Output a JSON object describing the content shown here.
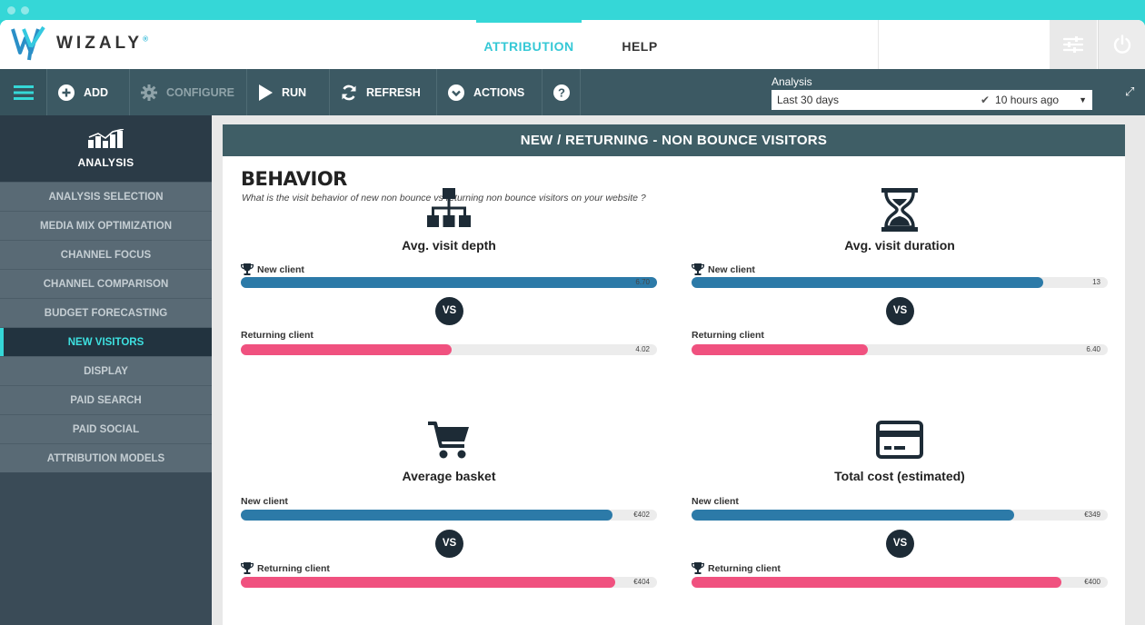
{
  "app": {
    "logo_text": "WIZALY",
    "logo_mark": "®"
  },
  "nav": {
    "attribution": "ATTRIBUTION",
    "help": "HELP"
  },
  "toolbar": {
    "add": "ADD",
    "configure": "CONFIGURE",
    "run": "RUN",
    "refresh": "REFRESH",
    "actions": "ACTIONS",
    "help_glyph": "?"
  },
  "analysis": {
    "label": "Analysis",
    "period": "Last 30 days",
    "status": "10 hours ago"
  },
  "sidebar": {
    "title": "ANALYSIS",
    "items": [
      {
        "label": "ANALYSIS SELECTION"
      },
      {
        "label": "MEDIA MIX OPTIMIZATION"
      },
      {
        "label": "CHANNEL FOCUS"
      },
      {
        "label": "CHANNEL COMPARISON"
      },
      {
        "label": "BUDGET FORECASTING"
      },
      {
        "label": "NEW VISITORS"
      },
      {
        "label": "DISPLAY"
      },
      {
        "label": "PAID SEARCH"
      },
      {
        "label": "PAID SOCIAL"
      },
      {
        "label": "ATTRIBUTION MODELS"
      }
    ],
    "active_index": 5
  },
  "panel": {
    "title": "NEW / RETURNING - NON BOUNCE VISITORS",
    "section_title": "BEHAVIOR",
    "section_subtitle": "What is the visit behavior of new non bounce vs returning non bounce visitors on your website ?"
  },
  "vs_label": "VS",
  "metrics": [
    {
      "title": "Avg. visit depth",
      "icon": "sitemap-icon",
      "new_label": "New client",
      "new_value": "6.70",
      "new_fill": 1.0,
      "new_winner": true,
      "ret_label": "Returning client",
      "ret_value": "4.02",
      "ret_fill": 0.506,
      "ret_winner": false
    },
    {
      "title": "Avg. visit duration",
      "icon": "hourglass-icon",
      "new_label": "New client",
      "new_value": "13",
      "new_fill": 0.845,
      "new_winner": true,
      "ret_label": "Returning client",
      "ret_value": "6.40",
      "ret_fill": 0.424,
      "ret_winner": false
    },
    {
      "title": "Average basket",
      "icon": "cart-icon",
      "new_label": "New client",
      "new_value": "€402",
      "new_fill": 0.893,
      "new_winner": false,
      "ret_label": "Returning client",
      "ret_value": "€404",
      "ret_fill": 0.9,
      "ret_winner": true
    },
    {
      "title": "Total cost (estimated)",
      "icon": "credit-card-icon",
      "new_label": "New client",
      "new_value": "€349",
      "new_fill": 0.776,
      "new_winner": false,
      "ret_label": "Returning client",
      "ret_value": "€400",
      "ret_fill": 0.889,
      "ret_winner": true
    }
  ],
  "colors": {
    "accent": "#35d7d7",
    "toolbar": "#3c5963",
    "new_bar": "#2c7aa8",
    "returning_bar": "#f0517f"
  }
}
